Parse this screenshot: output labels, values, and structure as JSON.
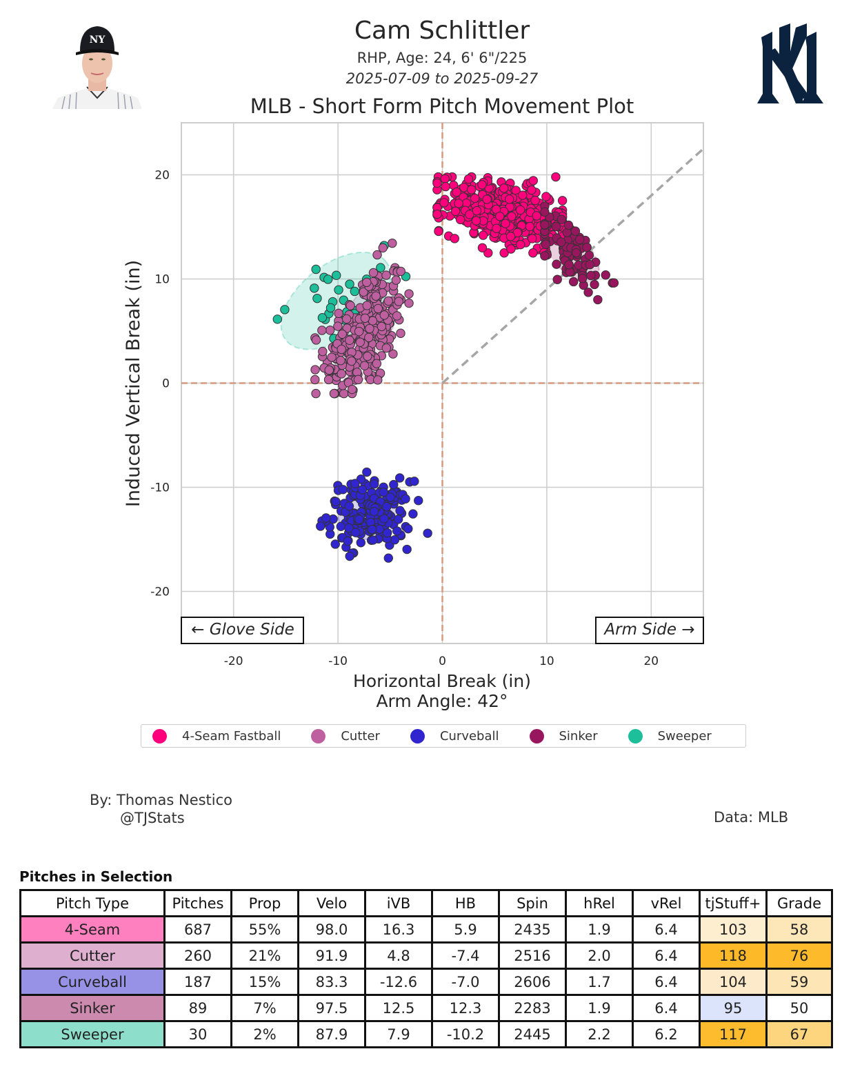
{
  "header": {
    "player_name": "Cam Schlittler",
    "bio": "RHP, Age: 24, 6' 6\"/225",
    "date_range": "2025-07-09 to 2025-09-27",
    "plot_title": "MLB - Short Form Pitch Movement Plot",
    "headshot_icon": "player-headshot-image",
    "team_logo_icon": "yankees-ny-logo"
  },
  "colors": {
    "4-Seam Fastball": "#FF007D",
    "Cutter": "#BE5FA0",
    "Curveball": "#3025CE",
    "Sinker": "#98165D",
    "Sweeper": "#1DBE9A",
    "zero_line": "#D69A7E",
    "arm_angle_line": "#A6A6A6",
    "grid": "#CCCCCC",
    "logo_navy": "#0C2340"
  },
  "chart_data": {
    "type": "scatter",
    "title": "MLB - Short Form Pitch Movement Plot",
    "xlabel": "Horizontal Break (in)",
    "xlabel_sub": "Arm Angle: 42°",
    "ylabel": "Induced Vertical Break (in)",
    "xlim": [
      -25,
      25
    ],
    "ylim": [
      -25,
      25
    ],
    "xticks": [
      -20,
      -10,
      0,
      10,
      20
    ],
    "yticks": [
      -20,
      -10,
      0,
      10,
      20
    ],
    "grid": true,
    "legend_position": "bottom-center",
    "annotations": {
      "glove_side": "← Glove Side",
      "arm_side": "Arm Side →",
      "arm_angle_deg": 42
    },
    "series": [
      {
        "name": "4-Seam Fastball",
        "count": 687,
        "mean_hb": 5.9,
        "mean_ivb": 16.3,
        "sd_hb": 3.0,
        "sd_ivb": 1.6,
        "corr": -0.35,
        "range_hb": [
          -0.5,
          11.5
        ],
        "range_ivb": [
          12.5,
          19.8
        ]
      },
      {
        "name": "Cutter",
        "count": 260,
        "mean_hb": -7.4,
        "mean_ivb": 4.8,
        "sd_hb": 1.9,
        "sd_ivb": 3.2,
        "corr": 0.45,
        "range_hb": [
          -12.2,
          -3.2
        ],
        "range_ivb": [
          -1.0,
          16.3
        ]
      },
      {
        "name": "Curveball",
        "count": 187,
        "mean_hb": -7.0,
        "mean_ivb": -12.6,
        "sd_hb": 2.0,
        "sd_ivb": 1.6,
        "corr": 0.0,
        "range_hb": [
          -11.8,
          -1.4
        ],
        "range_ivb": [
          -16.8,
          -5.2
        ]
      },
      {
        "name": "Sinker",
        "count": 89,
        "mean_hb": 12.3,
        "mean_ivb": 12.5,
        "sd_hb": 1.8,
        "sd_ivb": 1.9,
        "corr": -0.6,
        "range_hb": [
          9.8,
          16.9
        ],
        "range_ivb": [
          7.9,
          17.0
        ]
      },
      {
        "name": "Sweeper",
        "count": 30,
        "mean_hb": -10.2,
        "mean_ivb": 7.9,
        "sd_hb": 3.5,
        "sd_ivb": 3.1,
        "corr": 0.5,
        "range_hb": [
          -15.8,
          -3.5
        ],
        "range_ivb": [
          2.4,
          13.2
        ]
      }
    ]
  },
  "legend": [
    {
      "label": "4-Seam Fastball",
      "color": "#FF007D"
    },
    {
      "label": "Cutter",
      "color": "#BE5FA0"
    },
    {
      "label": "Curveball",
      "color": "#3025CE"
    },
    {
      "label": "Sinker",
      "color": "#98165D"
    },
    {
      "label": "Sweeper",
      "color": "#1DBE9A"
    }
  ],
  "footer": {
    "byline": "By: Thomas Nestico",
    "handle": "@TJStats",
    "data_source": "Data: MLB"
  },
  "table": {
    "title": "Pitches in Selection",
    "columns": [
      "Pitch Type",
      "Pitches",
      "Prop",
      "Velo",
      "iVB",
      "HB",
      "Spin",
      "hRel",
      "vRel",
      "tjStuff+",
      "Grade"
    ],
    "rows": [
      {
        "cells": [
          "4-Seam",
          "687",
          "55%",
          "98.0",
          "16.3",
          "5.9",
          "2435",
          "1.9",
          "6.4",
          "103",
          "58"
        ],
        "type_color": "#FF80BE",
        "stuff_color": "#FDEED0",
        "grade_color": "#FDE6B7"
      },
      {
        "cells": [
          "Cutter",
          "260",
          "21%",
          "91.9",
          "4.8",
          "-7.4",
          "2516",
          "2.0",
          "6.4",
          "118",
          "76"
        ],
        "type_color": "#DEAFCF",
        "stuff_color": "#FDB927",
        "grade_color": "#FDBB2C"
      },
      {
        "cells": [
          "Curveball",
          "187",
          "15%",
          "83.3",
          "-12.6",
          "-7.0",
          "2606",
          "1.7",
          "6.4",
          "104",
          "59"
        ],
        "type_color": "#9792E6",
        "stuff_color": "#FDEACA",
        "grade_color": "#FDE5B5"
      },
      {
        "cells": [
          "Sinker",
          "89",
          "7%",
          "97.5",
          "12.5",
          "12.3",
          "2283",
          "1.9",
          "6.4",
          "95",
          "50"
        ],
        "type_color": "#CB8AAE",
        "stuff_color": "#DCE4FB",
        "grade_color": "#FFFFFF"
      },
      {
        "cells": [
          "Sweeper",
          "30",
          "2%",
          "87.9",
          "7.9",
          "-10.2",
          "2445",
          "2.2",
          "6.2",
          "117",
          "67"
        ],
        "type_color": "#8EDECC",
        "stuff_color": "#FDBB2E",
        "grade_color": "#FDD57E"
      }
    ]
  }
}
